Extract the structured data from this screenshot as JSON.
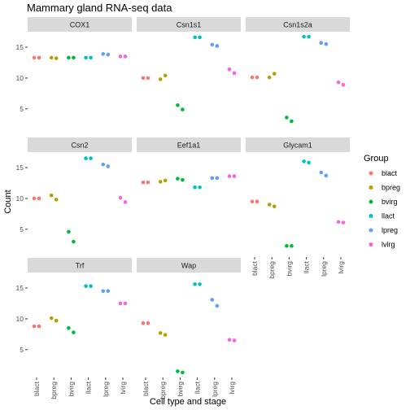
{
  "chart_data": {
    "type": "scatter",
    "title": "Mammary gland RNA-seq data",
    "xlabel": "Cell type and stage",
    "ylabel": "Count",
    "categories": [
      "blact",
      "bpreg",
      "bvirg",
      "llact",
      "lpreg",
      "lvirg"
    ],
    "y_ticks": [
      5,
      10,
      15
    ],
    "ylim": [
      0.5,
      17.5
    ],
    "grid": false,
    "legend": {
      "title": "Group",
      "position": "right",
      "entries": [
        {
          "name": "blact",
          "color": "#F8766D"
        },
        {
          "name": "bpreg",
          "color": "#B79F00"
        },
        {
          "name": "bvirg",
          "color": "#00BA38"
        },
        {
          "name": "llact",
          "color": "#00BFC4"
        },
        {
          "name": "lpreg",
          "color": "#619CFF"
        },
        {
          "name": "lvirg",
          "color": "#F564E3"
        }
      ]
    },
    "panels": [
      {
        "name": "COX1",
        "points": [
          {
            "group": "blact",
            "values": [
              13.3,
              13.3
            ]
          },
          {
            "group": "bpreg",
            "values": [
              13.3,
              13.2
            ]
          },
          {
            "group": "bvirg",
            "values": [
              13.3,
              13.3
            ]
          },
          {
            "group": "llact",
            "values": [
              13.3,
              13.3
            ]
          },
          {
            "group": "lpreg",
            "values": [
              13.9,
              13.8
            ]
          },
          {
            "group": "lvirg",
            "values": [
              13.5,
              13.5
            ]
          }
        ]
      },
      {
        "name": "Csn1s1",
        "points": [
          {
            "group": "blact",
            "values": [
              10.0,
              10.0
            ]
          },
          {
            "group": "bpreg",
            "values": [
              9.8,
              10.4
            ]
          },
          {
            "group": "bvirg",
            "values": [
              5.6,
              4.9
            ]
          },
          {
            "group": "llact",
            "values": [
              16.6,
              16.6
            ]
          },
          {
            "group": "lpreg",
            "values": [
              15.4,
              15.2
            ]
          },
          {
            "group": "lvirg",
            "values": [
              11.4,
              10.8
            ]
          }
        ]
      },
      {
        "name": "Csn1s2a",
        "points": [
          {
            "group": "blact",
            "values": [
              10.1,
              10.1
            ]
          },
          {
            "group": "bpreg",
            "values": [
              10.1,
              10.7
            ]
          },
          {
            "group": "bvirg",
            "values": [
              3.6,
              3.0
            ]
          },
          {
            "group": "llact",
            "values": [
              16.7,
              16.7
            ]
          },
          {
            "group": "lpreg",
            "values": [
              15.7,
              15.5
            ]
          },
          {
            "group": "lvirg",
            "values": [
              9.3,
              8.9
            ]
          }
        ]
      },
      {
        "name": "Csn2",
        "points": [
          {
            "group": "blact",
            "values": [
              10.0,
              10.0
            ]
          },
          {
            "group": "bpreg",
            "values": [
              10.5,
              9.8
            ]
          },
          {
            "group": "bvirg",
            "values": [
              4.6,
              3.0
            ]
          },
          {
            "group": "llact",
            "values": [
              16.5,
              16.5
            ]
          },
          {
            "group": "lpreg",
            "values": [
              15.5,
              15.2
            ]
          },
          {
            "group": "lvirg",
            "values": [
              10.1,
              9.4
            ]
          }
        ]
      },
      {
        "name": "Eef1a1",
        "points": [
          {
            "group": "blact",
            "values": [
              12.6,
              12.6
            ]
          },
          {
            "group": "bpreg",
            "values": [
              12.7,
              12.9
            ]
          },
          {
            "group": "bvirg",
            "values": [
              13.2,
              13.0
            ]
          },
          {
            "group": "llact",
            "values": [
              11.8,
              11.8
            ]
          },
          {
            "group": "lpreg",
            "values": [
              13.3,
              13.3
            ]
          },
          {
            "group": "lvirg",
            "values": [
              13.6,
              13.6
            ]
          }
        ]
      },
      {
        "name": "Glycam1",
        "points": [
          {
            "group": "blact",
            "values": [
              9.5,
              9.5
            ]
          },
          {
            "group": "bpreg",
            "values": [
              9.0,
              8.7
            ]
          },
          {
            "group": "bvirg",
            "values": [
              2.3,
              2.3
            ]
          },
          {
            "group": "llact",
            "values": [
              16.0,
              15.8
            ]
          },
          {
            "group": "lpreg",
            "values": [
              14.2,
              13.7
            ]
          },
          {
            "group": "lvirg",
            "values": [
              6.2,
              6.1
            ]
          }
        ]
      },
      {
        "name": "Trf",
        "points": [
          {
            "group": "blact",
            "values": [
              8.8,
              8.8
            ]
          },
          {
            "group": "bpreg",
            "values": [
              10.1,
              9.7
            ]
          },
          {
            "group": "bvirg",
            "values": [
              8.5,
              7.8
            ]
          },
          {
            "group": "llact",
            "values": [
              15.3,
              15.3
            ]
          },
          {
            "group": "lpreg",
            "values": [
              14.5,
              14.5
            ]
          },
          {
            "group": "lvirg",
            "values": [
              12.5,
              12.5
            ]
          }
        ]
      },
      {
        "name": "Wap",
        "points": [
          {
            "group": "blact",
            "values": [
              9.3,
              9.3
            ]
          },
          {
            "group": "bpreg",
            "values": [
              7.7,
              7.4
            ]
          },
          {
            "group": "bvirg",
            "values": [
              1.5,
              1.3
            ]
          },
          {
            "group": "llact",
            "values": [
              15.6,
              15.6
            ]
          },
          {
            "group": "lpreg",
            "values": [
              13.1,
              12.1
            ]
          },
          {
            "group": "lvirg",
            "values": [
              6.6,
              6.5
            ]
          }
        ]
      }
    ]
  }
}
